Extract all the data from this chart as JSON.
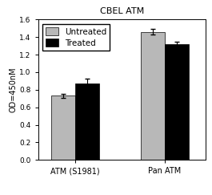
{
  "title": "CBEL ATM",
  "ylabel": "OD=450nM",
  "groups": [
    "ATM (S1981)",
    "Pan ATM"
  ],
  "legend_labels": [
    "Untreated",
    "Treated"
  ],
  "bar_colors": [
    "#b8b8b8",
    "#000000"
  ],
  "untreated_values": [
    0.73,
    1.46
  ],
  "treated_values": [
    0.875,
    1.32
  ],
  "untreated_errors": [
    0.025,
    0.03
  ],
  "treated_errors": [
    0.05,
    0.025
  ],
  "ylim": [
    0.0,
    1.6
  ],
  "yticks": [
    0.0,
    0.2,
    0.4,
    0.6,
    0.8,
    1.0,
    1.2,
    1.4,
    1.6
  ],
  "bar_width": 0.32,
  "group_positions": [
    1.0,
    2.2
  ],
  "title_fontsize": 8,
  "axis_fontsize": 7,
  "tick_fontsize": 6.5,
  "legend_fontsize": 7.5,
  "capsize": 2
}
